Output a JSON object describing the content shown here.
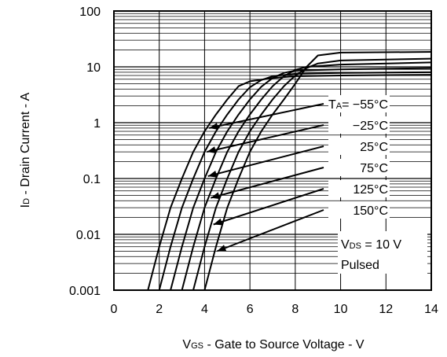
{
  "chart_data": {
    "type": "line",
    "x_scale": "linear",
    "y_scale": "log",
    "xlim": [
      0,
      14
    ],
    "ylim": [
      0.001,
      100
    ],
    "grid": true,
    "x_ticks": [
      "0",
      "2",
      "4",
      "6",
      "8",
      "10",
      "12",
      "14"
    ],
    "y_ticks": [
      "100",
      "10",
      "1",
      "0.1",
      "0.01",
      "0.001"
    ],
    "xlabel": {
      "symbol": "V",
      "subscript": "GS",
      "text": " - Gate to Source Voltage - V"
    },
    "ylabel": {
      "symbol": "I",
      "subscript": "D",
      "text": " - Drain Current - A"
    },
    "series": [
      {
        "name": "TA= −55°C",
        "prefix": "T",
        "sub": "A",
        "text": "= −55°C",
        "x": [
          1.5,
          2.0,
          2.5,
          3.0,
          3.5,
          4.0,
          4.5,
          5.0,
          5.5,
          6.0,
          7.0,
          8.0,
          10.0,
          14.0
        ],
        "y": [
          0.001,
          0.006,
          0.03,
          0.1,
          0.3,
          0.7,
          1.4,
          2.6,
          4.5,
          5.5,
          6.3,
          6.8,
          7.0,
          7.2
        ]
      },
      {
        "name": "−25°C",
        "text": "−25°C",
        "x": [
          2.0,
          2.5,
          3.0,
          3.5,
          4.0,
          4.5,
          5.0,
          5.5,
          6.0,
          6.5,
          7.0,
          8.0,
          10.0,
          14.0
        ],
        "y": [
          0.001,
          0.006,
          0.03,
          0.1,
          0.3,
          0.7,
          1.4,
          2.6,
          4.3,
          5.8,
          6.8,
          7.5,
          7.8,
          8.0
        ]
      },
      {
        "name": "25°C",
        "text": "25°C",
        "x": [
          2.5,
          3.0,
          3.5,
          4.0,
          4.5,
          5.0,
          5.5,
          6.0,
          6.5,
          7.0,
          7.5,
          8.0,
          10.0,
          14.0
        ],
        "y": [
          0.001,
          0.006,
          0.03,
          0.1,
          0.3,
          0.7,
          1.4,
          2.6,
          4.4,
          6.3,
          7.8,
          8.6,
          9.0,
          9.5
        ]
      },
      {
        "name": "75°C",
        "text": "75°C",
        "x": [
          3.0,
          3.5,
          4.0,
          4.5,
          5.0,
          5.5,
          6.0,
          6.5,
          7.0,
          7.5,
          8.0,
          8.5,
          10.0,
          14.0
        ],
        "y": [
          0.001,
          0.006,
          0.03,
          0.1,
          0.3,
          0.7,
          1.4,
          2.6,
          4.5,
          6.8,
          8.8,
          10.0,
          11.0,
          12.0
        ]
      },
      {
        "name": "125°C",
        "text": "125°C",
        "x": [
          3.5,
          4.0,
          4.5,
          5.0,
          5.5,
          6.0,
          6.5,
          7.0,
          7.5,
          8.0,
          8.5,
          9.0,
          10.0,
          14.0
        ],
        "y": [
          0.001,
          0.006,
          0.03,
          0.1,
          0.3,
          0.7,
          1.4,
          2.6,
          4.5,
          7.0,
          9.5,
          11.5,
          13.0,
          14.0
        ]
      },
      {
        "name": "150°C",
        "text": "150°C",
        "x": [
          4.0,
          4.5,
          5.0,
          5.5,
          6.0,
          6.5,
          7.0,
          7.5,
          8.0,
          8.5,
          9.0,
          10.0,
          14.0
        ],
        "y": [
          0.001,
          0.006,
          0.03,
          0.1,
          0.3,
          0.7,
          1.4,
          2.6,
          5.0,
          10.0,
          16.0,
          18.0,
          18.5
        ]
      }
    ],
    "annotations": [
      {
        "symbol": "V",
        "subscript": "DS",
        "text": " = 10 V"
      },
      {
        "text": "Pulsed"
      }
    ]
  }
}
